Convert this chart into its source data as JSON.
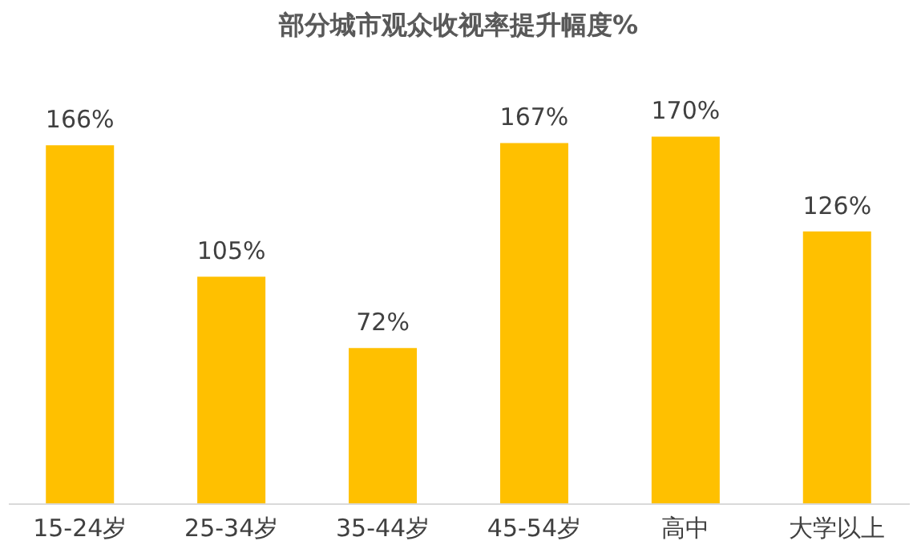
{
  "chart_data": {
    "type": "bar",
    "title": "部分城市观众收视率提升幅度%",
    "categories": [
      "15-24岁",
      "25-34岁",
      "35-44岁",
      "45-54岁",
      "高中",
      "大学以上"
    ],
    "values": [
      166,
      105,
      72,
      167,
      170,
      126
    ],
    "value_labels": [
      "166%",
      "105%",
      "72%",
      "167%",
      "170%",
      "126%"
    ],
    "color": "#ffc000"
  }
}
